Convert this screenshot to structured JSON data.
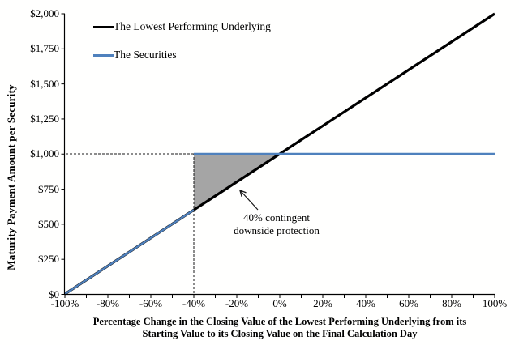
{
  "chart_data": {
    "type": "line",
    "x_axis": {
      "title_line1": "Percentage Change in the Closing Value of the Lowest Performing Underlying from its",
      "title_line2": "Starting Value to its Closing Value on the Final Calculation Day",
      "ticks": [
        "-100%",
        "-80%",
        "-60%",
        "-40%",
        "-20%",
        "0%",
        "20%",
        "40%",
        "60%",
        "80%",
        "100%"
      ],
      "range_pct": [
        -100,
        100
      ],
      "minor_tick_step_pct": 10
    },
    "y_axis": {
      "title": "Maturity Payment Amount per Security",
      "ticks": [
        "$2,000",
        "$1,750",
        "$1,500",
        "$1,250",
        "$1,000",
        "$750",
        "$500",
        "$250",
        "$0"
      ],
      "range_usd": [
        0,
        2000
      ],
      "tick_step_usd": 250
    },
    "series": [
      {
        "name": "The Lowest Performing Underlying",
        "color": "#000000",
        "points_pct_usd": [
          [
            -100,
            0
          ],
          [
            100,
            2000
          ]
        ]
      },
      {
        "name": "The Securities",
        "color": "#4F81BD",
        "segments_pct_usd": [
          [
            [
              -100,
              0
            ],
            [
              -40,
              600
            ]
          ],
          [
            [
              -40,
              1000
            ],
            [
              100,
              1000
            ]
          ]
        ]
      }
    ],
    "guides": {
      "horizontal_dashed_at_usd": 1000,
      "vertical_dashed_at_pct": -40
    },
    "shaded_region": {
      "color": "#A5A5A5",
      "vertices_pct_usd": [
        [
          -40,
          1000
        ],
        [
          0,
          1000
        ],
        [
          -40,
          600
        ]
      ]
    },
    "annotation": {
      "line1": "40% contingent",
      "line2": "downside protection"
    },
    "legend_position": "top-left-inside"
  },
  "colors": {
    "background": "#FFFFFE",
    "axis": "#000000",
    "underlying_line": "#000000",
    "securities_line": "#4F81BD",
    "shade": "#A5A5A5"
  }
}
